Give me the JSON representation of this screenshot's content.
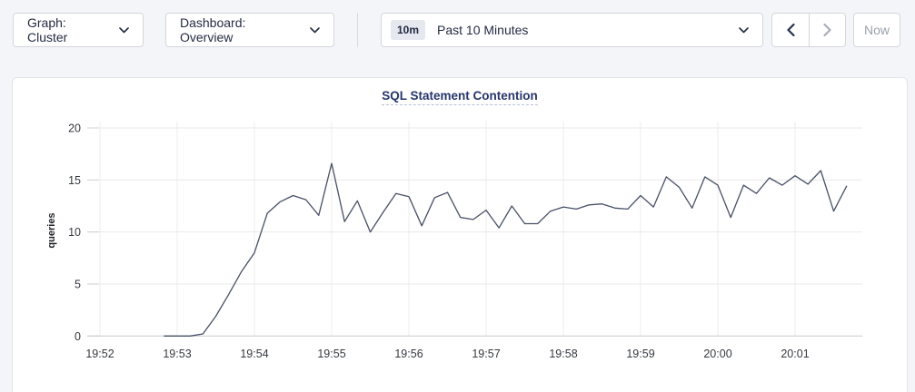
{
  "toolbar": {
    "graph_dropdown": {
      "label": "Graph: Cluster"
    },
    "dashboard_dropdown": {
      "label": "Dashboard: Overview"
    },
    "time_selector": {
      "badge": "10m",
      "label": "Past 10 Minutes"
    },
    "now_button_label": "Now",
    "icons": [
      "chevron-down-icon",
      "chevron-left-icon",
      "chevron-right-icon"
    ]
  },
  "colors": {
    "page_bg": "#f4f5f9",
    "card_bg": "#ffffff",
    "control_border": "#d4d6dc",
    "line": "#475166",
    "grid": "#ececec",
    "axis": "#c9cacd",
    "tick": "#cfd0d4",
    "tick_text": "#36393f",
    "title_text": "#26356b",
    "disabled_text": "#9aa1ac",
    "enabled_chevron": "#26334d",
    "disabled_chevron": "#a7adb8"
  },
  "chart_data": {
    "type": "line",
    "title": "SQL Statement Contention",
    "xlabel": "",
    "ylabel": "queries",
    "ylim": [
      0,
      20
    ],
    "yticks": [
      0,
      5,
      10,
      15,
      20
    ],
    "xticks": [
      "19:52",
      "19:53",
      "19:54",
      "19:55",
      "19:56",
      "19:57",
      "19:58",
      "19:59",
      "20:00",
      "20:01"
    ],
    "grid": true,
    "legend": "none",
    "series": [
      {
        "name": "queries",
        "color": "#475166",
        "points": [
          [
            "19:52:50",
            0
          ],
          [
            "19:53:00",
            0
          ],
          [
            "19:53:10",
            0
          ],
          [
            "19:53:20",
            0.2
          ],
          [
            "19:53:30",
            1.9
          ],
          [
            "19:53:40",
            4.0
          ],
          [
            "19:53:50",
            6.2
          ],
          [
            "19:54:00",
            8.0
          ],
          [
            "19:54:10",
            11.8
          ],
          [
            "19:54:20",
            12.9
          ],
          [
            "19:54:30",
            13.5
          ],
          [
            "19:54:40",
            13.1
          ],
          [
            "19:54:50",
            11.6
          ],
          [
            "19:55:00",
            16.6
          ],
          [
            "19:55:10",
            11.0
          ],
          [
            "19:55:20",
            13.0
          ],
          [
            "19:55:30",
            10.0
          ],
          [
            "19:55:40",
            11.9
          ],
          [
            "19:55:50",
            13.7
          ],
          [
            "19:56:00",
            13.4
          ],
          [
            "19:56:10",
            10.6
          ],
          [
            "19:56:20",
            13.3
          ],
          [
            "19:56:30",
            13.8
          ],
          [
            "19:56:40",
            11.4
          ],
          [
            "19:56:50",
            11.2
          ],
          [
            "19:57:00",
            12.1
          ],
          [
            "19:57:10",
            10.4
          ],
          [
            "19:57:20",
            12.5
          ],
          [
            "19:57:30",
            10.8
          ],
          [
            "19:57:40",
            10.8
          ],
          [
            "19:57:50",
            12.0
          ],
          [
            "19:58:00",
            12.4
          ],
          [
            "19:58:10",
            12.2
          ],
          [
            "19:58:20",
            12.6
          ],
          [
            "19:58:30",
            12.7
          ],
          [
            "19:58:40",
            12.3
          ],
          [
            "19:58:50",
            12.2
          ],
          [
            "19:59:00",
            13.5
          ],
          [
            "19:59:10",
            12.4
          ],
          [
            "19:59:20",
            15.3
          ],
          [
            "19:59:30",
            14.3
          ],
          [
            "19:59:40",
            12.3
          ],
          [
            "19:59:50",
            15.3
          ],
          [
            "20:00:00",
            14.5
          ],
          [
            "20:00:10",
            11.4
          ],
          [
            "20:00:20",
            14.5
          ],
          [
            "20:00:30",
            13.7
          ],
          [
            "20:00:40",
            15.2
          ],
          [
            "20:00:50",
            14.5
          ],
          [
            "20:01:00",
            15.4
          ],
          [
            "20:01:10",
            14.6
          ],
          [
            "20:01:20",
            15.9
          ],
          [
            "20:01:30",
            12.0
          ],
          [
            "20:01:40",
            14.4
          ]
        ]
      }
    ]
  }
}
